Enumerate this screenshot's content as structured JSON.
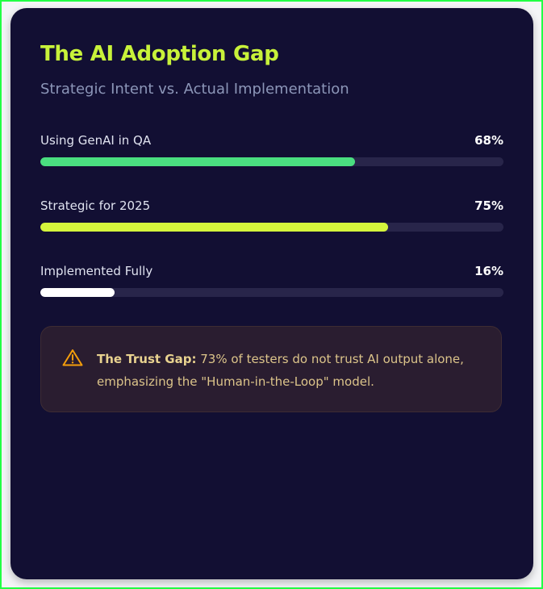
{
  "header": {
    "title": "The AI Adoption Gap",
    "subtitle": "Strategic Intent vs. Actual Implementation"
  },
  "metrics": [
    {
      "label": "Using GenAI in QA",
      "value_text": "68%",
      "value": 68,
      "color": "#4ade80"
    },
    {
      "label": "Strategic for 2025",
      "value_text": "75%",
      "value": 75,
      "color": "#d4f53c"
    },
    {
      "label": "Implemented Fully",
      "value_text": "16%",
      "value": 16,
      "color": "#ffffff"
    }
  ],
  "alert": {
    "icon": "warning-triangle-icon",
    "icon_color": "#f59e0b",
    "heading": "The Trust Gap:",
    "body": " 73% of testers do not trust AI output alone, emphasizing the \"Human-in-the-Loop\" model."
  }
}
